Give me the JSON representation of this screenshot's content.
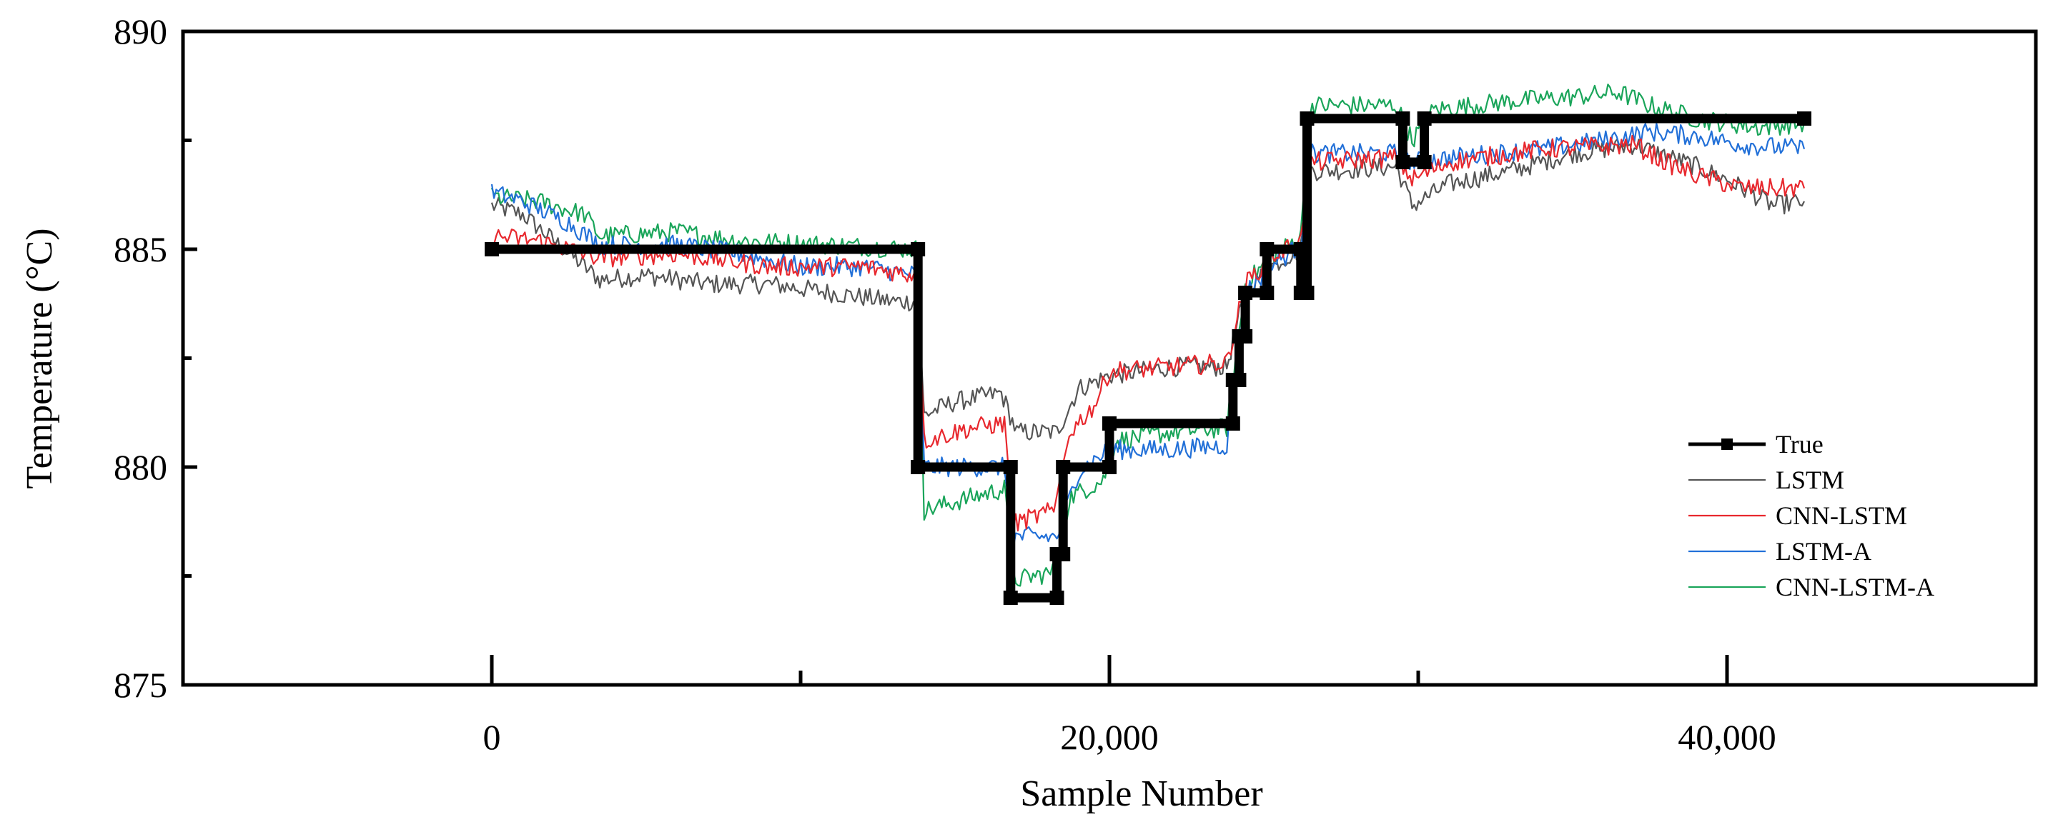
{
  "chart_data": {
    "type": "line",
    "xlabel": "Sample Number",
    "ylabel": "Temperature (°C)",
    "xlim": [
      -10000,
      50000
    ],
    "ylim": [
      875,
      890
    ],
    "x_ticks": [
      0,
      20000,
      40000
    ],
    "x_tick_labels": [
      "0",
      "20,000",
      "40,000"
    ],
    "x_minor_ticks": [
      10000,
      30000
    ],
    "y_ticks": [
      875,
      880,
      885,
      890
    ],
    "y_tick_labels": [
      "875",
      "880",
      "885",
      "890"
    ],
    "y_minor_ticks": [
      877.5,
      882.5,
      887.5
    ],
    "grid": false,
    "legend_position": "right",
    "series": [
      {
        "name": "True",
        "color": "#000000",
        "style": "thick-step-with-square-markers",
        "points": [
          [
            0,
            885
          ],
          [
            13800,
            885
          ],
          [
            13800,
            880
          ],
          [
            16800,
            880
          ],
          [
            16800,
            877
          ],
          [
            18300,
            877
          ],
          [
            18300,
            878
          ],
          [
            18500,
            878
          ],
          [
            18500,
            880
          ],
          [
            20000,
            880
          ],
          [
            20000,
            881
          ],
          [
            24000,
            881
          ],
          [
            24000,
            882
          ],
          [
            24200,
            882
          ],
          [
            24200,
            883
          ],
          [
            24400,
            883
          ],
          [
            24400,
            884
          ],
          [
            25100,
            884
          ],
          [
            25100,
            885
          ],
          [
            26200,
            885
          ],
          [
            26200,
            884
          ],
          [
            26400,
            884
          ],
          [
            26400,
            888
          ],
          [
            29500,
            888
          ],
          [
            29500,
            887
          ],
          [
            30200,
            887
          ],
          [
            30200,
            888
          ],
          [
            42500,
            888
          ]
        ]
      },
      {
        "name": "LSTM",
        "color": "#555555",
        "points": [
          [
            0,
            886
          ],
          [
            1000,
            885.8
          ],
          [
            2000,
            885.2
          ],
          [
            3500,
            884.3
          ],
          [
            5000,
            884.4
          ],
          [
            7000,
            884.2
          ],
          [
            9000,
            884.2
          ],
          [
            11000,
            884.0
          ],
          [
            13000,
            883.8
          ],
          [
            13800,
            883.8
          ],
          [
            14000,
            881.2
          ],
          [
            15000,
            881.5
          ],
          [
            16500,
            881.7
          ],
          [
            17000,
            880.8
          ],
          [
            18300,
            880.8
          ],
          [
            19000,
            881.8
          ],
          [
            20000,
            882.1
          ],
          [
            22000,
            882.3
          ],
          [
            23800,
            882.3
          ],
          [
            24400,
            884.0
          ],
          [
            25200,
            884.6
          ],
          [
            26200,
            885.0
          ],
          [
            26500,
            886.8
          ],
          [
            27000,
            886.8
          ],
          [
            29300,
            886.9
          ],
          [
            29800,
            886.0
          ],
          [
            31000,
            886.5
          ],
          [
            33000,
            886.8
          ],
          [
            35000,
            887.2
          ],
          [
            37000,
            887.4
          ],
          [
            39000,
            886.9
          ],
          [
            40000,
            886.6
          ],
          [
            41500,
            886.0
          ],
          [
            42500,
            886.1
          ]
        ]
      },
      {
        "name": "CNN-LSTM",
        "color": "#e8282e",
        "points": [
          [
            0,
            885.3
          ],
          [
            1500,
            885.2
          ],
          [
            3500,
            884.8
          ],
          [
            6000,
            884.9
          ],
          [
            9000,
            884.6
          ],
          [
            12000,
            884.6
          ],
          [
            13800,
            884.4
          ],
          [
            14000,
            880.6
          ],
          [
            15500,
            880.9
          ],
          [
            16600,
            881.0
          ],
          [
            16900,
            878.7
          ],
          [
            18200,
            879.0
          ],
          [
            18700,
            880.8
          ],
          [
            19500,
            881.4
          ],
          [
            20000,
            882.2
          ],
          [
            22000,
            882.3
          ],
          [
            23800,
            882.4
          ],
          [
            24400,
            884.2
          ],
          [
            25200,
            884.8
          ],
          [
            26200,
            885.2
          ],
          [
            26500,
            887.0
          ],
          [
            29300,
            887.1
          ],
          [
            29800,
            886.6
          ],
          [
            31000,
            887.0
          ],
          [
            34000,
            887.3
          ],
          [
            37000,
            887.4
          ],
          [
            38000,
            887.0
          ],
          [
            39000,
            886.7
          ],
          [
            40500,
            886.4
          ],
          [
            42500,
            886.4
          ]
        ]
      },
      {
        "name": "LSTM-A",
        "color": "#2270d8",
        "points": [
          [
            0,
            886.3
          ],
          [
            1000,
            886.1
          ],
          [
            2500,
            885.6
          ],
          [
            3500,
            885.1
          ],
          [
            6000,
            885.1
          ],
          [
            8000,
            884.9
          ],
          [
            10000,
            884.6
          ],
          [
            12000,
            884.6
          ],
          [
            13800,
            884.4
          ],
          [
            14000,
            880.0
          ],
          [
            15500,
            880.0
          ],
          [
            16600,
            880.0
          ],
          [
            16900,
            878.4
          ],
          [
            18300,
            878.4
          ],
          [
            19000,
            879.9
          ],
          [
            20000,
            880.4
          ],
          [
            22000,
            880.4
          ],
          [
            23800,
            880.5
          ],
          [
            24400,
            884.0
          ],
          [
            25200,
            884.6
          ],
          [
            26200,
            885.1
          ],
          [
            26500,
            887.2
          ],
          [
            29300,
            887.2
          ],
          [
            29800,
            887.0
          ],
          [
            31000,
            887.1
          ],
          [
            34000,
            887.3
          ],
          [
            36000,
            887.5
          ],
          [
            37500,
            887.7
          ],
          [
            39000,
            887.6
          ],
          [
            40500,
            887.4
          ],
          [
            42500,
            887.3
          ]
        ]
      },
      {
        "name": "CNN-LSTM-A",
        "color": "#1aa55a",
        "points": [
          [
            0,
            886.2
          ],
          [
            1500,
            886.1
          ],
          [
            3000,
            885.8
          ],
          [
            3500,
            885.3
          ],
          [
            6000,
            885.4
          ],
          [
            8000,
            885.2
          ],
          [
            11000,
            885.1
          ],
          [
            13800,
            885.0
          ],
          [
            14000,
            879.0
          ],
          [
            15500,
            879.3
          ],
          [
            16600,
            879.5
          ],
          [
            16900,
            877.4
          ],
          [
            18300,
            877.6
          ],
          [
            18700,
            879.3
          ],
          [
            19800,
            879.7
          ],
          [
            20200,
            880.6
          ],
          [
            22000,
            880.8
          ],
          [
            23800,
            880.9
          ],
          [
            24400,
            884.2
          ],
          [
            25200,
            884.8
          ],
          [
            26200,
            885.3
          ],
          [
            26500,
            888.3
          ],
          [
            29300,
            888.3
          ],
          [
            29800,
            887.5
          ],
          [
            30500,
            888.2
          ],
          [
            33000,
            888.4
          ],
          [
            35000,
            888.5
          ],
          [
            36500,
            888.6
          ],
          [
            37500,
            888.3
          ],
          [
            39000,
            888.0
          ],
          [
            41000,
            887.8
          ],
          [
            42500,
            887.9
          ]
        ]
      }
    ]
  }
}
